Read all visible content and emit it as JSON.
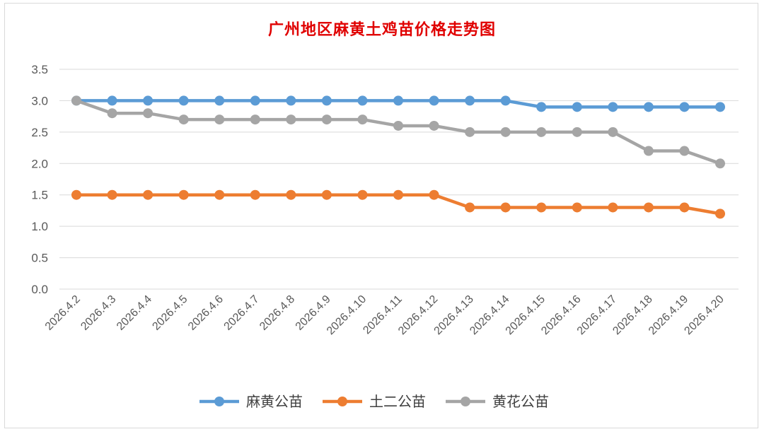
{
  "chart_data": {
    "type": "line",
    "title": "广州地区麻黄土鸡苗价格走势图",
    "xlabel": "",
    "ylabel": "",
    "ylim": [
      0,
      3.5
    ],
    "ytick_step": 0.5,
    "ytick_labels": [
      "0.0",
      "0.5",
      "1.0",
      "1.5",
      "2.0",
      "2.5",
      "3.0",
      "3.5"
    ],
    "grid": true,
    "legend_position": "bottom",
    "x": [
      "2026.4.2",
      "2026.4.3",
      "2026.4.4",
      "2026.4.5",
      "2026.4.6",
      "2026.4.7",
      "2026.4.8",
      "2026.4.9",
      "2026.4.10",
      "2026.4.11",
      "2026.4.12",
      "2026.4.13",
      "2026.4.14",
      "2026.4.15",
      "2026.4.16",
      "2026.4.17",
      "2026.4.18",
      "2026.4.19",
      "2026.4.20"
    ],
    "series": [
      {
        "name": "麻黄公苗",
        "color": "#5b9bd5",
        "values": [
          3.0,
          3.0,
          3.0,
          3.0,
          3.0,
          3.0,
          3.0,
          3.0,
          3.0,
          3.0,
          3.0,
          3.0,
          3.0,
          2.9,
          2.9,
          2.9,
          2.9,
          2.9,
          2.9
        ]
      },
      {
        "name": "土二公苗",
        "color": "#ed7d31",
        "values": [
          1.5,
          1.5,
          1.5,
          1.5,
          1.5,
          1.5,
          1.5,
          1.5,
          1.5,
          1.5,
          1.5,
          1.3,
          1.3,
          1.3,
          1.3,
          1.3,
          1.3,
          1.3,
          1.2
        ]
      },
      {
        "name": "黄花公苗",
        "color": "#a5a5a5",
        "values": [
          3.0,
          2.8,
          2.8,
          2.7,
          2.7,
          2.7,
          2.7,
          2.7,
          2.7,
          2.6,
          2.6,
          2.5,
          2.5,
          2.5,
          2.5,
          2.5,
          2.2,
          2.2,
          2.0
        ]
      }
    ]
  }
}
